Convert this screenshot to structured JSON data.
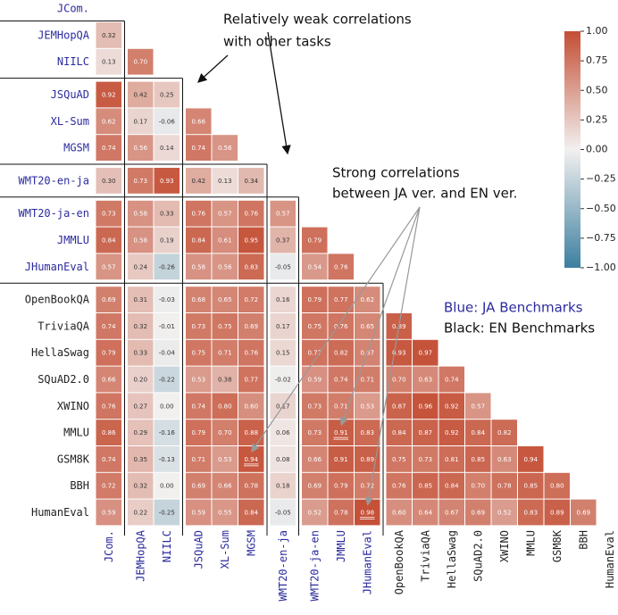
{
  "chart_data": {
    "type": "heatmap",
    "labels": [
      "JCom.",
      "JEMHopQA",
      "NIILC",
      "JSQuAD",
      "XL-Sum",
      "MGSM",
      "WMT20-en-ja",
      "WMT20-ja-en",
      "JMMLU",
      "JHumanEval",
      "OpenBookQA",
      "TriviaQA",
      "HellaSwag",
      "SQuAD2.0",
      "XWINO",
      "MMLU",
      "GSM8K",
      "BBH",
      "HumanEval"
    ],
    "label_colors": [
      "#2b2b9e",
      "#2b2b9e",
      "#2b2b9e",
      "#2b2b9e",
      "#2b2b9e",
      "#2b2b9e",
      "#2b2b9e",
      "#2b2b9e",
      "#2b2b9e",
      "#2b2b9e",
      "#222222",
      "#222222",
      "#222222",
      "#222222",
      "#222222",
      "#222222",
      "#222222",
      "#222222",
      "#222222"
    ],
    "values": [
      [],
      [
        0.32
      ],
      [
        0.13,
        0.7
      ],
      [
        0.92,
        0.42,
        0.25
      ],
      [
        0.62,
        0.17,
        -0.06,
        0.66
      ],
      [
        0.74,
        0.56,
        0.14,
        0.74,
        0.56
      ],
      [
        0.3,
        0.73,
        0.93,
        0.42,
        0.13,
        0.34
      ],
      [
        0.73,
        0.58,
        0.33,
        0.76,
        0.57,
        0.76,
        0.57
      ],
      [
        0.84,
        0.58,
        0.19,
        0.84,
        0.61,
        0.95,
        0.37,
        0.79
      ],
      [
        0.57,
        0.24,
        -0.26,
        0.58,
        0.56,
        0.83,
        -0.05,
        0.54,
        0.76
      ],
      [
        0.69,
        0.31,
        -0.03,
        0.68,
        0.65,
        0.72,
        0.16,
        0.79,
        0.77,
        0.62
      ],
      [
        0.74,
        0.32,
        -0.01,
        0.73,
        0.75,
        0.69,
        0.17,
        0.75,
        0.76,
        0.65,
        0.89
      ],
      [
        0.79,
        0.33,
        -0.04,
        0.75,
        0.71,
        0.76,
        0.15,
        0.77,
        0.82,
        0.67,
        0.93,
        0.97
      ],
      [
        0.66,
        0.2,
        -0.22,
        0.53,
        0.38,
        0.77,
        -0.02,
        0.59,
        0.74,
        0.71,
        0.7,
        0.63,
        0.74
      ],
      [
        0.76,
        0.27,
        0.0,
        0.74,
        0.8,
        0.6,
        0.17,
        0.73,
        0.71,
        0.53,
        0.87,
        0.96,
        0.92,
        0.57
      ],
      [
        0.86,
        0.29,
        -0.16,
        0.79,
        0.7,
        0.88,
        0.06,
        0.73,
        0.91,
        0.83,
        0.84,
        0.87,
        0.92,
        0.84,
        0.82
      ],
      [
        0.74,
        0.35,
        -0.13,
        0.71,
        0.53,
        0.94,
        0.08,
        0.66,
        0.91,
        0.89,
        0.75,
        0.73,
        0.81,
        0.85,
        0.63,
        0.94
      ],
      [
        0.72,
        0.32,
        0.0,
        0.69,
        0.66,
        0.78,
        0.18,
        0.69,
        0.79,
        0.72,
        0.76,
        0.85,
        0.84,
        0.7,
        0.78,
        0.85,
        0.8
      ],
      [
        0.59,
        0.22,
        -0.25,
        0.59,
        0.55,
        0.84,
        -0.05,
        0.52,
        0.78,
        0.98,
        0.6,
        0.64,
        0.67,
        0.69,
        0.52,
        0.83,
        0.89,
        0.69
      ]
    ],
    "value_labels": [
      [],
      [
        "0.32"
      ],
      [
        "0.13",
        "0.70"
      ],
      [
        "0.92",
        "0.42",
        "0.25"
      ],
      [
        "0.62",
        "0.17",
        "-0.06",
        "0.66"
      ],
      [
        "0.74",
        "0.56",
        "0.14",
        "0.74",
        "0.56"
      ],
      [
        "0.30",
        "0.73",
        "0.93",
        "0.42",
        "0.13",
        "0.34"
      ],
      [
        "0.73",
        "0.58",
        "0.33",
        "0.76",
        "0.57",
        "0.76",
        "0.57"
      ],
      [
        "0.84",
        "0.58",
        "0.19",
        "0.84",
        "0.61",
        "0.95",
        "0.37",
        "0.79"
      ],
      [
        "0.57",
        "0.24",
        "-0.26",
        "0.58",
        "0.56",
        "0.83",
        "-0.05",
        "0.54",
        "0.76"
      ],
      [
        "0.69",
        "0.31",
        "-0.03",
        "0.68",
        "0.65",
        "0.72",
        "0.16",
        "0.79",
        "0.77",
        "0.62"
      ],
      [
        "0.74",
        "0.32",
        "-0.01",
        "0.73",
        "0.75",
        "0.69",
        "0.17",
        "0.75",
        "0.76",
        "0.65",
        "0.89"
      ],
      [
        "0.79",
        "0.33",
        "-0.04",
        "0.75",
        "0.71",
        "0.76",
        "0.15",
        "0.77",
        "0.82",
        "0.67",
        "0.93",
        "0.97"
      ],
      [
        "0.66",
        "0.20",
        "-0.22",
        "0.53",
        "0.38",
        "0.77",
        "-0.02",
        "0.59",
        "0.74",
        "0.71",
        "0.70",
        "0.63",
        "0.74"
      ],
      [
        "0.76",
        "0.27",
        "0.00",
        "0.74",
        "0.80",
        "0.60",
        "0.17",
        "0.73",
        "0.71",
        "0.53",
        "0.87",
        "0.96",
        "0.92",
        "0.57"
      ],
      [
        "0.86",
        "0.29",
        "-0.16",
        "0.79",
        "0.70",
        "0.88",
        "0.06",
        "0.73",
        "0.91",
        "0.83",
        "0.84",
        "0.87",
        "0.92",
        "0.84",
        "0.82"
      ],
      [
        "0.74",
        "0.35",
        "-0.13",
        "0.71",
        "0.53",
        "0.94",
        "0.08",
        "0.66",
        "0.91",
        "0.89",
        "0.75",
        "0.73",
        "0.81",
        "0.85",
        "0.63",
        "0.94"
      ],
      [
        "0.72",
        "0.32",
        "0.00",
        "0.69",
        "0.66",
        "0.78",
        "0.18",
        "0.69",
        "0.79",
        "0.72",
        "0.76",
        "0.85",
        "0.84",
        "0.70",
        "0.78",
        "0.85",
        "0.80"
      ],
      [
        "0.59",
        "0.22",
        "-0.25",
        "0.59",
        "0.55",
        "0.84",
        "-0.05",
        "0.52",
        "0.78",
        "0.98",
        "0.60",
        "0.64",
        "0.67",
        "0.69",
        "0.52",
        "0.83",
        "0.89",
        "0.69"
      ]
    ],
    "colormap": [
      "#3c7fa0",
      "#f2f0ef",
      "#c44e34"
    ],
    "clim": [
      -1,
      1
    ],
    "cticks": [
      {
        "value": 1,
        "label": "1.00"
      },
      {
        "value": 0.75,
        "label": "0.75"
      },
      {
        "value": 0.5,
        "label": "0.50"
      },
      {
        "value": 0.25,
        "label": "0.25"
      },
      {
        "value": 0,
        "label": "0.00"
      },
      {
        "value": -0.25,
        "label": "−0.25"
      },
      {
        "value": -0.5,
        "label": "−0.50"
      },
      {
        "value": -0.75,
        "label": "−0.75"
      },
      {
        "value": -1,
        "label": "−1.00"
      }
    ],
    "annotations": [
      [
        "Relatively weak correlations",
        "with other tasks"
      ],
      [
        "Strong correlations",
        "between JA ver. and EN ver."
      ]
    ],
    "legend_text": [
      "Blue: JA Benchmarks",
      "Black: EN Benchmarks"
    ],
    "legend_colors": [
      "#2b2b9e",
      "#111111"
    ]
  }
}
